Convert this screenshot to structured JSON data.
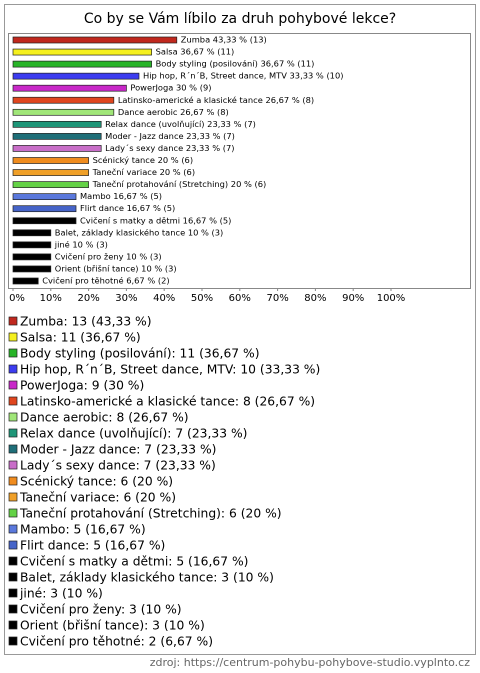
{
  "chart_data": {
    "type": "hbar",
    "title": "Co by se Vám líbilo za druh pohybové lekce?",
    "values": [
      43.33,
      36.67,
      36.67,
      33.33,
      30,
      26.67,
      26.67,
      23.33,
      23.33,
      23.33,
      20,
      20,
      20,
      16.67,
      16.67,
      16.67,
      10,
      10,
      10,
      10,
      6.67
    ],
    "value_labels": [
      "Zumba 43,33 % (13)",
      "Salsa 36,67 % (11)",
      "Body styling (posilování) 36,67 % (11)",
      "Hip hop, R´n´B, Street dance, MTV 33,33 % (10)",
      "PowerJoga 30 % (9)",
      "Latinsko-americké a klasické tance 26,67 % (8)",
      "Dance aerobic 26,67 % (8)",
      "Relax dance (uvolňující) 23,33 % (7)",
      "Moder - Jazz dance 23,33 % (7)",
      "Lady´s sexy dance 23,33 % (7)",
      "Scénický tance 20 % (6)",
      "Taneční variace 20 % (6)",
      "Taneční protahování (Stretching) 20 % (6)",
      "Mambo 16,67 % (5)",
      "Flirt dance 16,67 % (5)",
      "Cvičení s matky a dětmi 16,67 % (5)",
      "Balet, základy klasického tance 10 % (3)",
      "jiné 10 % (3)",
      "Cvičení pro ženy 10 % (3)",
      "Orient (břišní tance) 10 % (3)",
      "Cvičení pro těhotné 6,67 % (2)"
    ],
    "legend_labels": [
      "Zumba: 13 (43,33 %)",
      "Salsa: 11 (36,67 %)",
      "Body styling (posilování): 11 (36,67 %)",
      "Hip hop, R´n´B, Street dance, MTV: 10 (33,33 %)",
      "PowerJoga: 9 (30 %)",
      "Latinsko-americké a klasické tance: 8 (26,67 %)",
      "Dance aerobic: 8 (26,67 %)",
      "Relax dance (uvolňující): 7 (23,33 %)",
      "Moder - Jazz dance: 7 (23,33 %)",
      "Lady´s sexy dance: 7 (23,33 %)",
      "Scénický tance: 6 (20 %)",
      "Taneční variace: 6 (20 %)",
      "Taneční protahování (Stretching): 6 (20 %)",
      "Mambo: 5 (16,67 %)",
      "Flirt dance: 5 (16,67 %)",
      "Cvičení s matky a dětmi: 5 (16,67 %)",
      "Balet, základy klasického tance: 3 (10 %)",
      "jiné: 3 (10 %)",
      "Cvičení pro ženy: 3 (10 %)",
      "Orient (břišní tance): 3 (10 %)",
      "Cvičení pro těhotné: 2 (6,67 %)"
    ],
    "colors": [
      "#c0281e",
      "#f5f01e",
      "#28b428",
      "#3c3cf0",
      "#c828c8",
      "#e0461e",
      "#a0e678",
      "#1e9678",
      "#1e6e78",
      "#c86ec8",
      "#f08c1e",
      "#f0a028",
      "#64d246",
      "#5a78dc",
      "#4664c8",
      "#000000",
      "#000000",
      "#000000",
      "#000000",
      "#000000",
      "#000000"
    ],
    "xlim": [
      0,
      100
    ],
    "xticks": [
      {
        "value": 0,
        "label": "0%"
      },
      {
        "value": 10,
        "label": "10%"
      },
      {
        "value": 20,
        "label": "20%"
      },
      {
        "value": 30,
        "label": "30%"
      },
      {
        "value": 40,
        "label": "40%"
      },
      {
        "value": 50,
        "label": "50%"
      },
      {
        "value": 60,
        "label": "60%"
      },
      {
        "value": 70,
        "label": "70%"
      },
      {
        "value": 80,
        "label": "80%"
      },
      {
        "value": 90,
        "label": "90%"
      },
      {
        "value": 100,
        "label": "100%"
      }
    ],
    "source": "zdroj: https://centrum-pohybu-pohybove-studio.vyplnto.cz"
  }
}
